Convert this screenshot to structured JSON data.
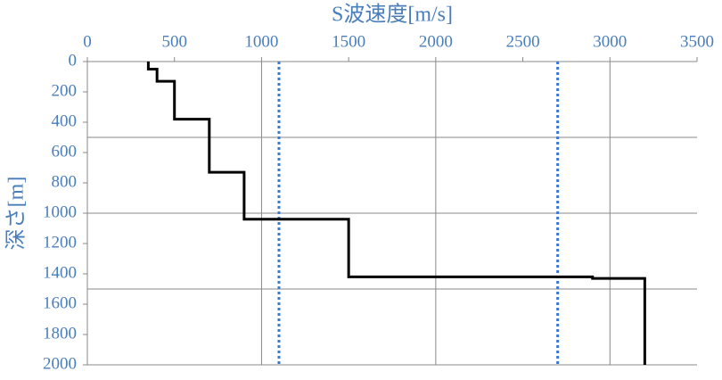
{
  "chart_data": {
    "type": "line",
    "x_label": "S波速度[m/s]",
    "y_label": "深さ[m]",
    "series": [
      {
        "color": "#000000",
        "x": [
          350,
          350,
          400,
          400,
          500,
          500,
          700,
          700,
          900,
          900,
          1500,
          1500,
          2900,
          2900,
          3200,
          3200
        ],
        "values": [
          0,
          50,
          50,
          130,
          130,
          380,
          380,
          730,
          730,
          1040,
          1040,
          1420,
          1420,
          1430,
          1430,
          2000
        ]
      }
    ],
    "reference_lines": [
      1100,
      2700
    ],
    "reference_color": "#3a78d8",
    "xlim": [
      0,
      3500
    ],
    "xticks": [
      0,
      500,
      1000,
      1500,
      2000,
      2500,
      3000,
      3500
    ],
    "ylim": [
      0,
      2000
    ],
    "yticks": [
      0,
      200,
      400,
      600,
      800,
      1000,
      1200,
      1400,
      1600,
      1800,
      2000
    ],
    "y_inverted": true,
    "xgrid": [
      1000,
      2000,
      3000
    ],
    "ygrid": [
      500,
      1000,
      1500,
      2000
    ],
    "label_color": "#4a7ebb"
  }
}
